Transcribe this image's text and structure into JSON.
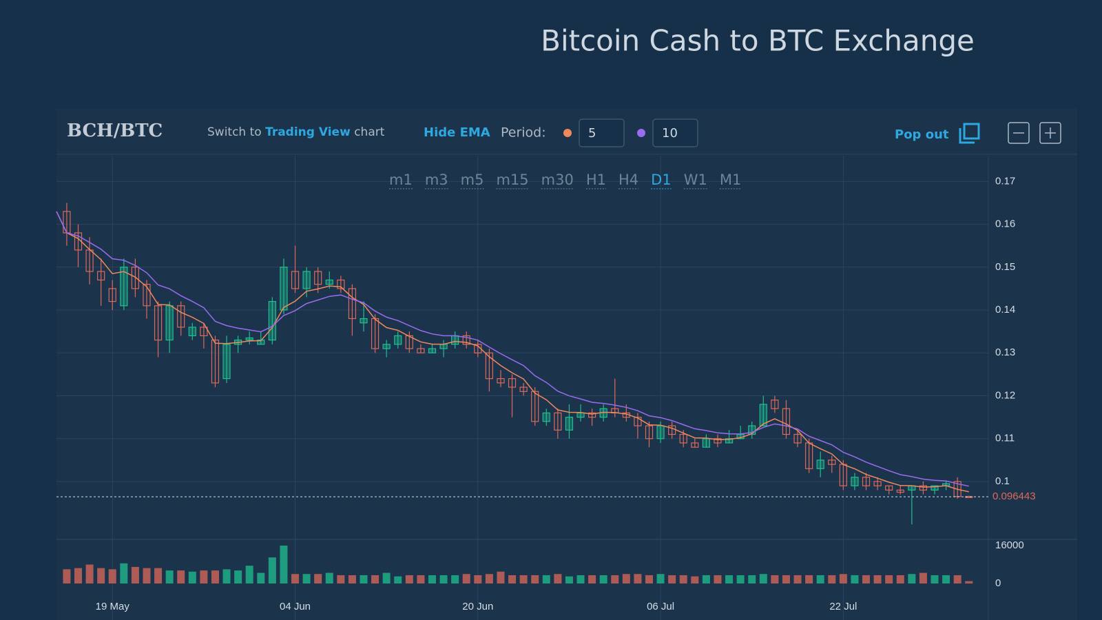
{
  "page": {
    "title": "Bitcoin Cash to BTC Exchange"
  },
  "toolbar": {
    "pair": "BCH/BTC",
    "switch_prefix": "Switch to",
    "switch_link": "Trading View",
    "switch_suffix": "chart",
    "hide_ema": "Hide EMA",
    "period_label": "Period:",
    "pop_out": "Pop out"
  },
  "timeframes": {
    "items": [
      "m1",
      "m3",
      "m5",
      "m15",
      "m30",
      "H1",
      "H4",
      "D1",
      "W1",
      "M1"
    ],
    "active": "D1"
  },
  "chart_data": {
    "type": "candlestick",
    "x": [
      "15 May",
      "16 May",
      "17 May",
      "18 May",
      "19 May",
      "20 May",
      "21 May",
      "22 May",
      "23 May",
      "24 May",
      "25 May",
      "26 May",
      "27 May",
      "28 May",
      "29 May",
      "30 May",
      "31 May",
      "01 Jun",
      "02 Jun",
      "03 Jun",
      "04 Jun",
      "05 Jun",
      "06 Jun",
      "07 Jun",
      "08 Jun",
      "09 Jun",
      "10 Jun",
      "11 Jun",
      "12 Jun",
      "13 Jun",
      "14 Jun",
      "15 Jun",
      "16 Jun",
      "17 Jun",
      "18 Jun",
      "19 Jun",
      "20 Jun",
      "21 Jun",
      "22 Jun",
      "23 Jun",
      "24 Jun",
      "25 Jun",
      "26 Jun",
      "27 Jun",
      "28 Jun",
      "29 Jun",
      "30 Jun",
      "01 Jul",
      "02 Jul",
      "03 Jul",
      "04 Jul",
      "05 Jul",
      "06 Jul",
      "07 Jul",
      "08 Jul",
      "09 Jul",
      "10 Jul",
      "11 Jul",
      "12 Jul",
      "13 Jul",
      "14 Jul",
      "15 Jul",
      "16 Jul",
      "17 Jul",
      "18 Jul",
      "19 Jul",
      "20 Jul",
      "21 Jul",
      "22 Jul",
      "23 Jul",
      "24 Jul",
      "25 Jul",
      "26 Jul",
      "27 Jul",
      "28 Jul",
      "29 Jul",
      "30 Jul",
      "31 Jul",
      "01 Aug",
      "02 Aug"
    ],
    "open": [
      0.163,
      0.158,
      0.154,
      0.149,
      0.145,
      0.141,
      0.15,
      0.146,
      0.141,
      0.133,
      0.141,
      0.134,
      0.136,
      0.133,
      0.124,
      0.132,
      0.133,
      0.132,
      0.133,
      0.14,
      0.149,
      0.145,
      0.149,
      0.146,
      0.147,
      0.145,
      0.137,
      0.138,
      0.131,
      0.132,
      0.134,
      0.131,
      0.13,
      0.131,
      0.132,
      0.134,
      0.132,
      0.13,
      0.124,
      0.124,
      0.122,
      0.121,
      0.114,
      0.116,
      0.112,
      0.115,
      0.116,
      0.115,
      0.117,
      0.116,
      0.115,
      0.113,
      0.11,
      0.113,
      0.111,
      0.109,
      0.108,
      0.11,
      0.109,
      0.11,
      0.111,
      0.113,
      0.119,
      0.117,
      0.111,
      0.109,
      0.103,
      0.105,
      0.104,
      0.099,
      0.101,
      0.1,
      0.099,
      0.098,
      0.098,
      0.099,
      0.098,
      0.099,
      0.1,
      0.0965
    ],
    "high": [
      0.165,
      0.16,
      0.157,
      0.152,
      0.147,
      0.152,
      0.152,
      0.147,
      0.142,
      0.142,
      0.142,
      0.137,
      0.137,
      0.134,
      0.134,
      0.134,
      0.135,
      0.135,
      0.143,
      0.152,
      0.155,
      0.15,
      0.15,
      0.149,
      0.148,
      0.146,
      0.142,
      0.139,
      0.133,
      0.135,
      0.135,
      0.132,
      0.132,
      0.133,
      0.135,
      0.135,
      0.133,
      0.131,
      0.126,
      0.125,
      0.123,
      0.122,
      0.117,
      0.117,
      0.118,
      0.118,
      0.117,
      0.118,
      0.124,
      0.118,
      0.116,
      0.114,
      0.114,
      0.114,
      0.112,
      0.11,
      0.111,
      0.111,
      0.112,
      0.113,
      0.114,
      0.12,
      0.12,
      0.119,
      0.112,
      0.11,
      0.107,
      0.106,
      0.105,
      0.102,
      0.102,
      0.101,
      0.099,
      0.099,
      0.099,
      0.1,
      0.099,
      0.1,
      0.101,
      0.0967
    ],
    "low": [
      0.155,
      0.15,
      0.146,
      0.141,
      0.14,
      0.14,
      0.143,
      0.138,
      0.129,
      0.13,
      0.134,
      0.133,
      0.131,
      0.122,
      0.123,
      0.13,
      0.132,
      0.132,
      0.132,
      0.139,
      0.144,
      0.143,
      0.144,
      0.145,
      0.144,
      0.134,
      0.135,
      0.13,
      0.129,
      0.131,
      0.13,
      0.13,
      0.13,
      0.129,
      0.131,
      0.131,
      0.129,
      0.121,
      0.122,
      0.115,
      0.12,
      0.113,
      0.113,
      0.11,
      0.11,
      0.114,
      0.113,
      0.114,
      0.115,
      0.114,
      0.11,
      0.108,
      0.109,
      0.11,
      0.108,
      0.108,
      0.108,
      0.108,
      0.109,
      0.11,
      0.11,
      0.113,
      0.116,
      0.11,
      0.108,
      0.102,
      0.101,
      0.102,
      0.098,
      0.098,
      0.098,
      0.098,
      0.097,
      0.097,
      0.09,
      0.097,
      0.097,
      0.098,
      0.096,
      0.0962
    ],
    "close": [
      0.158,
      0.154,
      0.149,
      0.147,
      0.142,
      0.15,
      0.145,
      0.141,
      0.133,
      0.141,
      0.136,
      0.136,
      0.134,
      0.123,
      0.132,
      0.133,
      0.1335,
      0.133,
      0.142,
      0.15,
      0.145,
      0.149,
      0.146,
      0.147,
      0.145,
      0.138,
      0.138,
      0.131,
      0.132,
      0.134,
      0.131,
      0.13,
      0.131,
      0.132,
      0.134,
      0.132,
      0.13,
      0.124,
      0.123,
      0.122,
      0.121,
      0.114,
      0.116,
      0.112,
      0.115,
      0.116,
      0.115,
      0.117,
      0.116,
      0.115,
      0.113,
      0.11,
      0.113,
      0.111,
      0.109,
      0.108,
      0.11,
      0.109,
      0.11,
      0.111,
      0.113,
      0.118,
      0.117,
      0.111,
      0.109,
      0.103,
      0.105,
      0.104,
      0.099,
      0.101,
      0.099,
      0.099,
      0.098,
      0.0975,
      0.099,
      0.098,
      0.099,
      0.0995,
      0.0965,
      0.096443
    ],
    "volume": [
      6000,
      6500,
      8000,
      6500,
      6000,
      8500,
      7000,
      6500,
      6500,
      5500,
      5500,
      5000,
      5500,
      5500,
      6000,
      5500,
      7500,
      4500,
      11000,
      16000,
      4000,
      4000,
      4000,
      4500,
      3500,
      3500,
      3500,
      3500,
      4500,
      3000,
      3500,
      3500,
      3500,
      3500,
      3500,
      4000,
      3500,
      4000,
      5000,
      3500,
      3500,
      3500,
      3500,
      4000,
      3000,
      3500,
      3500,
      3500,
      3500,
      4000,
      4000,
      3500,
      4000,
      3500,
      3500,
      3000,
      3500,
      3500,
      3500,
      3500,
      3500,
      4000,
      3500,
      3500,
      3500,
      3500,
      3500,
      3500,
      4000,
      3500,
      3500,
      3500,
      3500,
      3500,
      4000,
      4500,
      3500,
      3500,
      3500,
      1000
    ],
    "up_color": "#1fbf8f",
    "down_color": "#e0685a",
    "ema": [
      {
        "period": 5,
        "color": "#f08a5d"
      },
      {
        "period": 10,
        "color": "#9a6cf0"
      }
    ],
    "ylim": [
      0.0865,
      0.176
    ],
    "yticks": [
      0.1,
      0.11,
      0.12,
      0.13,
      0.14,
      0.15,
      0.16,
      0.17
    ],
    "volume_ylim": [
      -2900,
      18600
    ],
    "volume_yticks": [
      0,
      16000
    ],
    "xticks": [
      "19 May",
      "04 Jun",
      "20 Jun",
      "06 Jul",
      "22 Jul"
    ],
    "last_price": 0.096443,
    "grid": true
  }
}
